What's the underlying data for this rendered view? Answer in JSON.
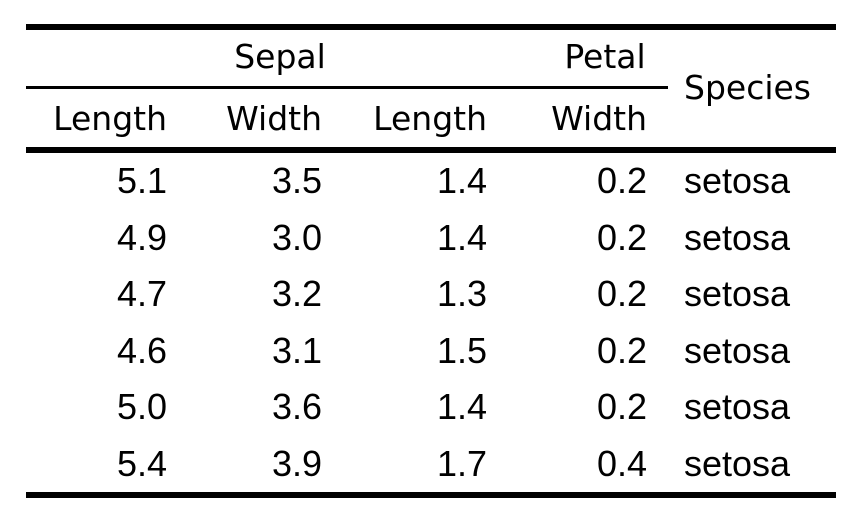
{
  "table": {
    "title_hidden": "",
    "spanners": [
      {
        "label": "Sepal"
      },
      {
        "label": "Petal"
      }
    ],
    "species_header": "Species",
    "columns": [
      "Length",
      "Width",
      "Length",
      "Width"
    ],
    "rows": [
      {
        "cells": [
          "5.1",
          "3.5",
          "1.4",
          "0.2",
          "setosa"
        ]
      },
      {
        "cells": [
          "4.9",
          "3.0",
          "1.4",
          "0.2",
          "setosa"
        ]
      },
      {
        "cells": [
          "4.7",
          "3.2",
          "1.3",
          "0.2",
          "setosa"
        ]
      },
      {
        "cells": [
          "4.6",
          "3.1",
          "1.5",
          "0.2",
          "setosa"
        ]
      },
      {
        "cells": [
          "5.0",
          "3.6",
          "1.4",
          "0.2",
          "setosa"
        ]
      },
      {
        "cells": [
          "5.4",
          "3.9",
          "1.7",
          "0.4",
          "setosa"
        ]
      }
    ],
    "colors": {
      "text": "#000000",
      "background": "#ffffff",
      "rule": "#000000"
    }
  }
}
